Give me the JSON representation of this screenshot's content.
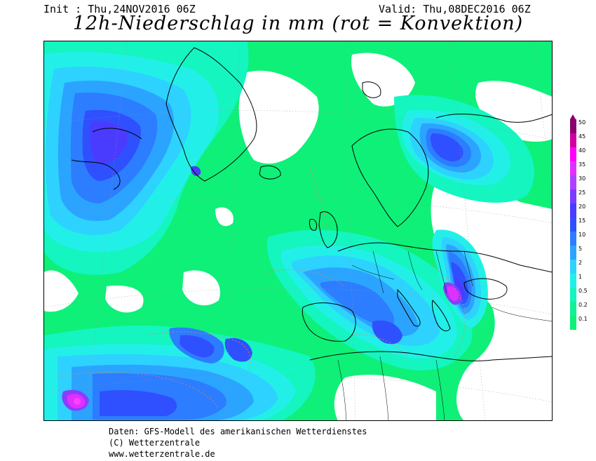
{
  "header": {
    "init": "Init : Thu,24NOV2016 06Z",
    "valid": "Valid: Thu,08DEC2016 06Z",
    "title": "12h-Niederschlag in mm (rot = Konvektion)"
  },
  "legend": {
    "levels": [
      "50",
      "45",
      "40",
      "35",
      "30",
      "25",
      "20",
      "15",
      "10",
      "5",
      "2",
      "1",
      "0.5",
      "0.2",
      "0.1"
    ],
    "colors": [
      "#8a006e",
      "#d000a0",
      "#ff00ff",
      "#e030ff",
      "#b040ff",
      "#7a3cff",
      "#4a3cff",
      "#2f50ff",
      "#2c7dff",
      "#2ba4ff",
      "#2ed2ff",
      "#22f0e8",
      "#14f5c0",
      "#10f295",
      "#0ef078"
    ]
  },
  "map": {
    "colors": {
      "background": "#ffffff",
      "p01": "#0ef078",
      "p02": "#14f5c0",
      "p05": "#22f0e8",
      "p1": "#2ed2ff",
      "p2": "#2ba4ff",
      "p5": "#2c7dff",
      "p10": "#2f50ff",
      "p15": "#4a3cff",
      "p20": "#8a3cff",
      "p30": "#e030ff",
      "p40": "#ff40ff",
      "coast": "#000000",
      "grid": "#9a9a9a",
      "convection": "#ff7a4a"
    }
  },
  "footer": {
    "line1": "Daten: GFS-Modell des amerikanischen Wetterdienstes",
    "line2": "(C) Wetterzentrale",
    "line3": "www.wetterzentrale.de"
  }
}
